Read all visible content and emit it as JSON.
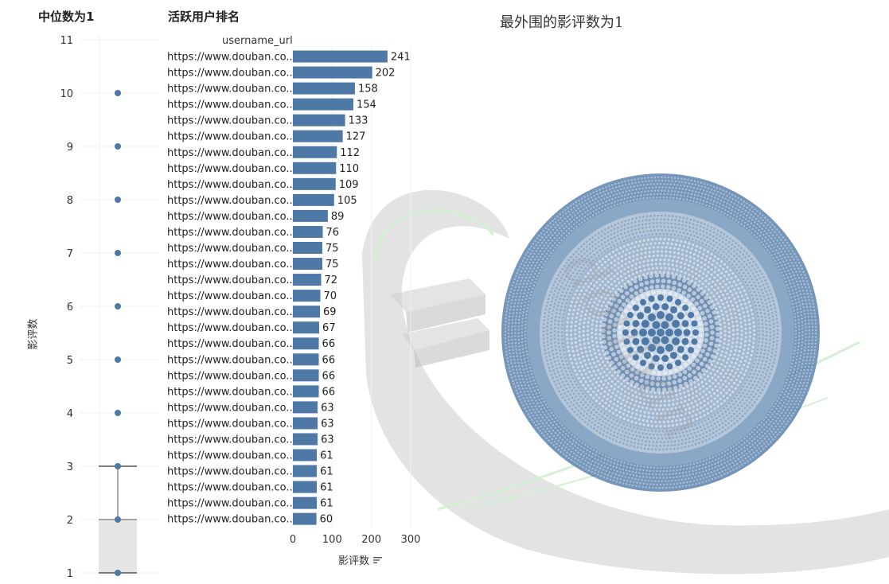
{
  "colors": {
    "accent": "#4e79a7",
    "box_fill": "#e6e6e6",
    "grid": "#f0f0f0",
    "watermark_gray": "#dcdcdc",
    "watermark_green": "#d8f2d8"
  },
  "boxplot": {
    "title": "中位数为1",
    "ylabel": "影评数",
    "chart_data": {
      "type": "box",
      "y_ticks": [
        "1",
        "2",
        "3",
        "4",
        "5",
        "6",
        "7",
        "8",
        "9",
        "10",
        "11"
      ],
      "ylim": [
        1,
        11
      ],
      "points": [
        1,
        2,
        3,
        4,
        5,
        6,
        7,
        8,
        9,
        10
      ],
      "q1": 1,
      "median": 1,
      "q3": 2,
      "whisker_low": 1,
      "whisker_high": 3
    }
  },
  "bar": {
    "title": "活跃用户排名",
    "row_header": "username_url",
    "xlabel": "影评数",
    "sort_icon": "sort-descending-icon",
    "chart_data": {
      "type": "bar",
      "orientation": "horizontal",
      "categories": [
        "https://www.douban.co..",
        "https://www.douban.co..",
        "https://www.douban.co..",
        "https://www.douban.co..",
        "https://www.douban.co..",
        "https://www.douban.co..",
        "https://www.douban.co..",
        "https://www.douban.co..",
        "https://www.douban.co..",
        "https://www.douban.co..",
        "https://www.douban.co..",
        "https://www.douban.co..",
        "https://www.douban.co..",
        "https://www.douban.co..",
        "https://www.douban.co..",
        "https://www.douban.co..",
        "https://www.douban.co..",
        "https://www.douban.co..",
        "https://www.douban.co..",
        "https://www.douban.co..",
        "https://www.douban.co..",
        "https://www.douban.co..",
        "https://www.douban.co..",
        "https://www.douban.co..",
        "https://www.douban.co..",
        "https://www.douban.co..",
        "https://www.douban.co..",
        "https://www.douban.co..",
        "https://www.douban.co..",
        "https://www.douban.co.."
      ],
      "values": [
        241,
        202,
        158,
        154,
        133,
        127,
        112,
        110,
        109,
        105,
        89,
        76,
        75,
        75,
        72,
        70,
        69,
        67,
        66,
        66,
        66,
        66,
        63,
        63,
        63,
        61,
        61,
        61,
        61,
        60
      ],
      "x_ticks": [
        "0",
        "100",
        "200",
        "300"
      ],
      "xlim": [
        0,
        300
      ]
    }
  },
  "circle": {
    "title": "最外围的影评数为1",
    "watermark_text": "douban",
    "chart_data": {
      "type": "packed-circles",
      "rings": [
        {
          "ring": "outer",
          "tone": "dense"
        },
        {
          "ring": "middle",
          "tone": "light"
        },
        {
          "ring": "inner",
          "tone": "dense"
        },
        {
          "ring": "core",
          "tone": "light"
        }
      ]
    }
  }
}
